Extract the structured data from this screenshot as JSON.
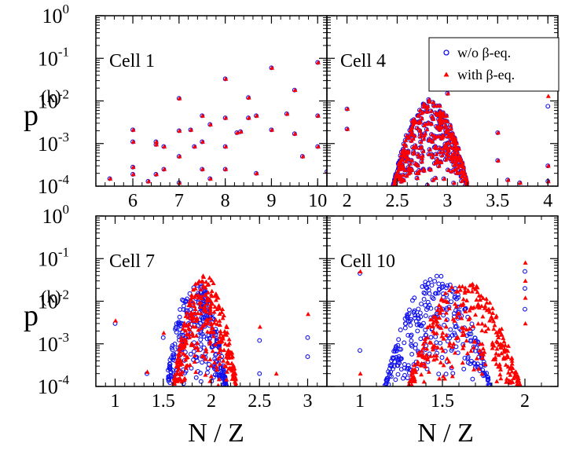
{
  "figure": {
    "ylabel": "p",
    "ylabel_superscript": "(k)",
    "xlabel": "N / Z"
  },
  "legend": {
    "series_blue": "w/o β-eq.",
    "series_red": "with β-eq."
  },
  "colors": {
    "blue": "#1010ee",
    "red": "#ff0000"
  },
  "chart_data": [
    {
      "type": "scatter",
      "title": "Cell 1",
      "ylabel": "p(k)",
      "ylim_exponents": [
        -4,
        0
      ],
      "xlim": [
        5.2,
        10.2
      ],
      "xticks": [
        6,
        7,
        8,
        9,
        10
      ],
      "xtick_labels": [
        "6",
        "7",
        "8",
        "9",
        "10"
      ],
      "series": [
        {
          "name": "w/o β-eq.",
          "marker": "circle",
          "points": [
            [
              5.5,
              0.00015
            ],
            [
              6.0,
              0.0021
            ],
            [
              6.0,
              0.0011
            ],
            [
              6.0,
              0.00028
            ],
            [
              6.0,
              0.00019
            ],
            [
              6.33,
              0.00013
            ],
            [
              6.5,
              0.0011
            ],
            [
              6.5,
              0.00095
            ],
            [
              6.5,
              0.00019
            ],
            [
              6.67,
              0.00085
            ],
            [
              6.67,
              0.00025
            ],
            [
              7.0,
              0.0115
            ],
            [
              7.0,
              0.002
            ],
            [
              7.0,
              0.0005
            ],
            [
              7.0,
              0.00012
            ],
            [
              7.25,
              0.0021
            ],
            [
              7.33,
              0.00085
            ],
            [
              7.5,
              0.0045
            ],
            [
              7.5,
              0.0011
            ],
            [
              7.5,
              0.00025
            ],
            [
              7.67,
              0.0028
            ],
            [
              7.67,
              0.00015
            ],
            [
              8.0,
              0.033
            ],
            [
              8.0,
              0.004
            ],
            [
              8.0,
              0.00085
            ],
            [
              8.0,
              0.00025
            ],
            [
              8.25,
              0.0018
            ],
            [
              8.33,
              0.0019
            ],
            [
              8.5,
              0.012
            ],
            [
              8.5,
              0.004
            ],
            [
              8.67,
              0.0045
            ],
            [
              8.67,
              0.0002
            ],
            [
              9.0,
              0.06
            ],
            [
              9.0,
              0.0021
            ],
            [
              9.33,
              0.005
            ],
            [
              9.5,
              0.018
            ],
            [
              9.5,
              0.0017
            ],
            [
              9.67,
              0.0005
            ],
            [
              10.0,
              0.08
            ],
            [
              10.0,
              0.0045
            ],
            [
              10.0,
              0.00085
            ],
            [
              10.2,
              0.00022
            ]
          ]
        },
        {
          "name": "with β-eq.",
          "marker": "triangle",
          "points": [
            [
              5.5,
              0.00015
            ],
            [
              6.0,
              0.0021
            ],
            [
              6.0,
              0.0011
            ],
            [
              6.0,
              0.00028
            ],
            [
              6.0,
              0.00019
            ],
            [
              6.33,
              0.00013
            ],
            [
              6.5,
              0.0011
            ],
            [
              6.5,
              0.00095
            ],
            [
              6.5,
              0.00019
            ],
            [
              6.67,
              0.00085
            ],
            [
              6.67,
              0.00025
            ],
            [
              7.0,
              0.0115
            ],
            [
              7.0,
              0.002
            ],
            [
              7.0,
              0.0005
            ],
            [
              7.0,
              0.00012
            ],
            [
              7.25,
              0.0021
            ],
            [
              7.33,
              0.00085
            ],
            [
              7.5,
              0.0045
            ],
            [
              7.5,
              0.0011
            ],
            [
              7.5,
              0.00025
            ],
            [
              7.67,
              0.0028
            ],
            [
              7.67,
              0.00015
            ],
            [
              8.0,
              0.033
            ],
            [
              8.0,
              0.004
            ],
            [
              8.0,
              0.00085
            ],
            [
              8.0,
              0.00025
            ],
            [
              8.25,
              0.0018
            ],
            [
              8.33,
              0.0019
            ],
            [
              8.5,
              0.012
            ],
            [
              8.5,
              0.004
            ],
            [
              8.67,
              0.0045
            ],
            [
              8.67,
              0.0002
            ],
            [
              9.0,
              0.06
            ],
            [
              9.0,
              0.0021
            ],
            [
              9.33,
              0.005
            ],
            [
              9.5,
              0.018
            ],
            [
              9.5,
              0.0017
            ],
            [
              9.67,
              0.0005
            ],
            [
              10.0,
              0.08
            ],
            [
              10.0,
              0.0045
            ],
            [
              10.0,
              0.00085
            ],
            [
              10.2,
              0.00022
            ]
          ]
        }
      ]
    },
    {
      "type": "scatter",
      "title": "Cell 4",
      "ylim_exponents": [
        -4,
        0
      ],
      "xlim": [
        1.8,
        4.1
      ],
      "xticks": [
        2,
        2.5,
        3,
        3.5,
        4
      ],
      "xtick_labels": [
        "2",
        "2.5",
        "3",
        "3.5",
        "4"
      ],
      "series": [
        {
          "name": "w/o β-eq.",
          "marker": "circle",
          "cloud": {
            "x_range": [
              2.42,
              3.35
            ],
            "peak_x": 2.83,
            "peak_p": 0.011,
            "x_halfwidth": 0.42,
            "min_p": 0.0001,
            "count": 360,
            "seed": 17
          },
          "points": [
            [
              2.0,
              0.0065
            ],
            [
              2.0,
              0.0022
            ],
            [
              3.0,
              0.015
            ],
            [
              3.5,
              0.0018
            ],
            [
              3.5,
              0.0004
            ],
            [
              3.6,
              0.00014
            ],
            [
              3.72,
              0.00012
            ],
            [
              4.0,
              0.0075
            ],
            [
              4.0,
              0.0003
            ],
            [
              4.0,
              0.00013
            ]
          ]
        },
        {
          "name": "with β-eq.",
          "marker": "triangle",
          "cloud": {
            "x_range": [
              2.42,
              3.35
            ],
            "peak_x": 2.83,
            "peak_p": 0.011,
            "x_halfwidth": 0.42,
            "min_p": 0.0001,
            "count": 360,
            "seed": 17
          },
          "points": [
            [
              2.0,
              0.0065
            ],
            [
              2.0,
              0.0022
            ],
            [
              3.0,
              0.015
            ],
            [
              3.5,
              0.0018
            ],
            [
              3.5,
              0.0004
            ],
            [
              3.6,
              0.00014
            ],
            [
              3.72,
              0.00012
            ],
            [
              4.0,
              0.013
            ],
            [
              4.0,
              0.0003
            ],
            [
              4.0,
              0.00013
            ]
          ]
        }
      ]
    },
    {
      "type": "scatter",
      "title": "Cell 7",
      "ylim_exponents": [
        -4,
        0
      ],
      "xlim": [
        0.8,
        3.2
      ],
      "xticks": [
        1,
        1.5,
        2,
        2.5,
        3
      ],
      "xtick_labels": [
        "1",
        "1.5",
        "2",
        "2.5",
        "3"
      ],
      "series": [
        {
          "name": "w/o β-eq.",
          "marker": "circle",
          "cloud": {
            "x_range": [
              1.55,
              2.2
            ],
            "peak_x": 1.84,
            "peak_p": 0.035,
            "x_halfwidth": 0.32,
            "min_p": 0.0001,
            "count": 300,
            "seed": 29
          },
          "points": [
            [
              1.0,
              0.003
            ],
            [
              1.33,
              0.0002
            ],
            [
              1.5,
              0.0014
            ],
            [
              2.5,
              0.0012
            ],
            [
              2.5,
              0.0002
            ],
            [
              3.0,
              0.0014
            ],
            [
              3.0,
              0.0005
            ]
          ]
        },
        {
          "name": "with β-eq.",
          "marker": "triangle",
          "cloud": {
            "x_range": [
              1.58,
              2.25
            ],
            "peak_x": 1.93,
            "peak_p": 0.045,
            "x_halfwidth": 0.33,
            "min_p": 0.0001,
            "count": 320,
            "seed": 31
          },
          "points": [
            [
              1.0,
              0.0035
            ],
            [
              1.33,
              0.00022
            ],
            [
              1.5,
              0.0018
            ],
            [
              2.5,
              0.0025
            ],
            [
              2.67,
              0.0002
            ],
            [
              3.0,
              0.005
            ]
          ]
        }
      ]
    },
    {
      "type": "scatter",
      "title": "Cell 10",
      "ylim_exponents": [
        -4,
        0
      ],
      "xlim": [
        0.8,
        2.2
      ],
      "xticks": [
        1,
        1.5,
        2
      ],
      "xtick_labels": [
        "1",
        "1.5",
        "2"
      ],
      "series": [
        {
          "name": "w/o β-eq.",
          "marker": "circle",
          "cloud": {
            "x_range": [
              1.15,
              1.82
            ],
            "peak_x": 1.47,
            "peak_p": 0.04,
            "x_halfwidth": 0.32,
            "min_p": 0.0001,
            "count": 300,
            "seed": 41
          },
          "points": [
            [
              1.0,
              0.045
            ],
            [
              1.0,
              0.0007
            ],
            [
              2.0,
              0.05
            ],
            [
              2.0,
              0.02
            ],
            [
              2.0,
              0.0065
            ]
          ]
        },
        {
          "name": "with β-eq.",
          "marker": "triangle",
          "cloud": {
            "x_range": [
              1.28,
              2.0
            ],
            "peak_x": 1.63,
            "peak_p": 0.03,
            "x_halfwidth": 0.35,
            "min_p": 0.0001,
            "count": 320,
            "seed": 43
          },
          "points": [
            [
              1.0,
              0.05
            ],
            [
              1.0,
              0.0002
            ],
            [
              2.0,
              0.08
            ],
            [
              2.0,
              0.03
            ],
            [
              2.0,
              0.012
            ],
            [
              2.0,
              0.003
            ]
          ]
        }
      ]
    }
  ]
}
